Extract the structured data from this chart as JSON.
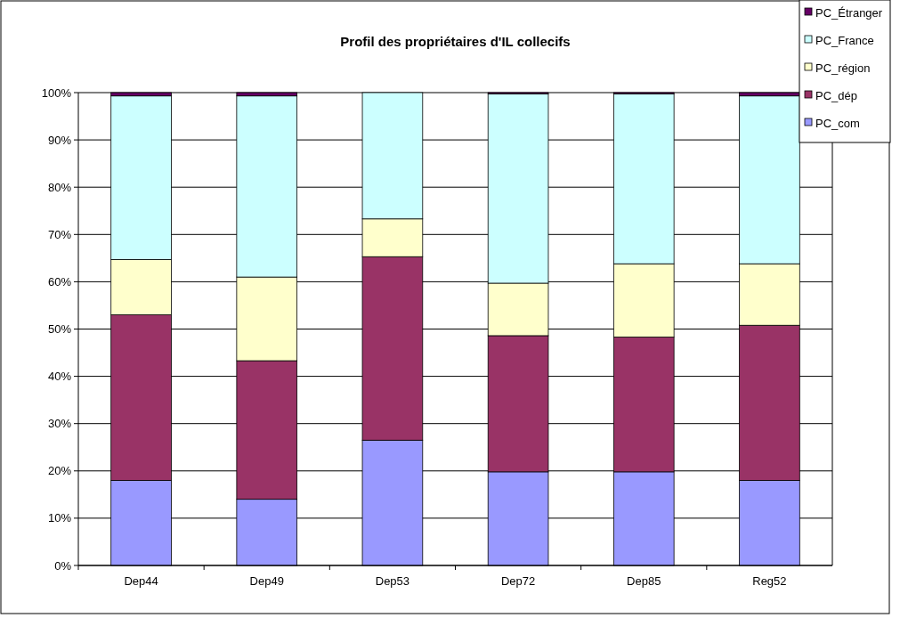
{
  "chart_data": {
    "type": "bar",
    "stacked": true,
    "title": "Profil des propriétaires d'IL collecifs",
    "categories": [
      "Dep44",
      "Dep49",
      "Dep53",
      "Dep72",
      "Dep85",
      "Reg52"
    ],
    "series": [
      {
        "name": "PC_com",
        "color": "#9999ff",
        "values": [
          18,
          14,
          26.5,
          19.8,
          19.8,
          18
        ]
      },
      {
        "name": "PC_dép",
        "color": "#993366",
        "values": [
          35,
          29.3,
          38.8,
          28.8,
          28.5,
          32.8
        ]
      },
      {
        "name": "PC_région",
        "color": "#ffffcc",
        "values": [
          11.7,
          17.7,
          8,
          11.1,
          15.5,
          13
        ]
      },
      {
        "name": "PC_France",
        "color": "#ccffff",
        "values": [
          34.6,
          38.3,
          26.7,
          40,
          35.9,
          35.5
        ]
      },
      {
        "name": "PC_Étranger",
        "color": "#660066",
        "values": [
          0.7,
          0.7,
          0,
          0.3,
          0.3,
          0.7
        ]
      }
    ],
    "ylim": [
      0,
      100
    ],
    "yticks": [
      {
        "value": 0,
        "label": "0%"
      },
      {
        "value": 10,
        "label": "10%"
      },
      {
        "value": 20,
        "label": "20%"
      },
      {
        "value": 30,
        "label": "30%"
      },
      {
        "value": 40,
        "label": "40%"
      },
      {
        "value": 50,
        "label": "50%"
      },
      {
        "value": 60,
        "label": "60%"
      },
      {
        "value": 70,
        "label": "70%"
      },
      {
        "value": 80,
        "label": "80%"
      },
      {
        "value": 90,
        "label": "90%"
      },
      {
        "value": 100,
        "label": "100%"
      }
    ],
    "grid": "y",
    "legend": "top right"
  }
}
